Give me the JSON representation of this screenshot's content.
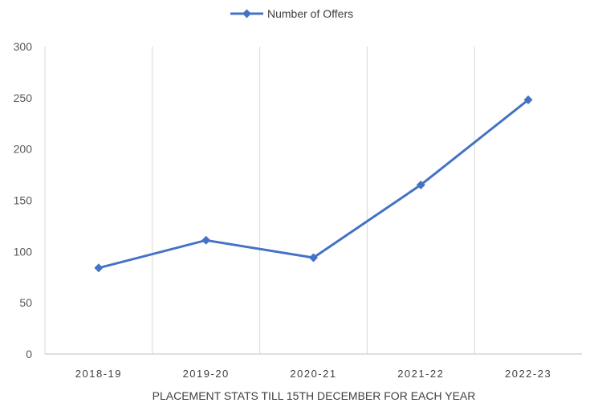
{
  "chart_data": {
    "type": "line",
    "categories": [
      "2018-19",
      "2019-20",
      "2020-21",
      "2021-22",
      "2022-23"
    ],
    "series": [
      {
        "name": "Number of Offers",
        "values": [
          84,
          111,
          94,
          165,
          248
        ],
        "color": "#4472C4",
        "marker": "diamond"
      }
    ],
    "title": "",
    "xlabel": "PLACEMENT STATS TILL 15TH DECEMBER FOR EACH YEAR",
    "ylabel": "",
    "ylim": [
      0,
      300
    ],
    "yticks": [
      0,
      50,
      100,
      150,
      200,
      250,
      300
    ],
    "grid": "vertical",
    "legend_position": "top"
  },
  "colors": {
    "gridline": "#d9d9d9",
    "axis": "#bfbfbf"
  }
}
